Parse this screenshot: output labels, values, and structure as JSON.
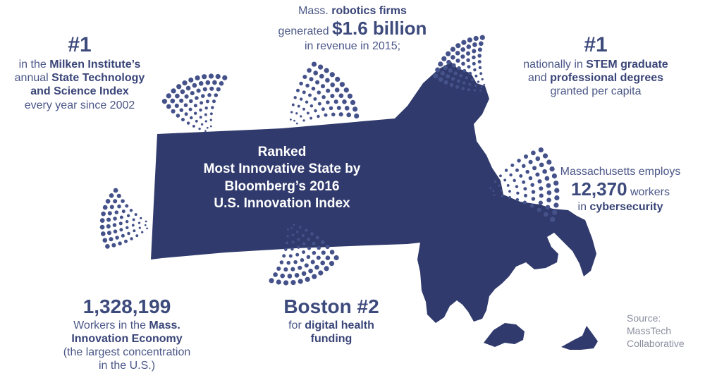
{
  "colors": {
    "navy": "#303a6c",
    "dots": "#45528a",
    "text": "#3d4a7c",
    "source": "#8a8f9e"
  },
  "map_label": "massachusetts-map",
  "center": {
    "line1": "Ranked",
    "line2": "Most Innovative State by",
    "line3": "Bloomberg’s 2016",
    "line4": "U.S. Innovation Index"
  },
  "milken": {
    "rank": "#1",
    "line1_pre": "in the ",
    "line1_bold": "Milken Institute’s",
    "line2_pre": "annual ",
    "line2_bold": "State Technology",
    "line3_bold": "and Science Index",
    "line4": "every year since 2002"
  },
  "robotics": {
    "line1_pre": "Mass. ",
    "line1_bold": "robotics firms",
    "line2_pre": "generated ",
    "line2_big": "$1.6 billion",
    "line3": "in revenue in 2015;"
  },
  "stem": {
    "rank": "#1",
    "line1_pre": "nationally in ",
    "line1_bold": "STEM graduate",
    "line2_pre": "and ",
    "line2_bold": "professional degrees",
    "line3": "granted per capita"
  },
  "cyber": {
    "line1": "Massachusetts employs",
    "number": "12,370",
    "line2_post": " workers",
    "line3_pre": "in ",
    "line3_bold": "cybersecurity"
  },
  "workers": {
    "number": "1,328,199",
    "line1_pre": "Workers in the ",
    "line1_bold": "Mass.",
    "line2_bold": "Innovation Economy",
    "line3": "(the largest concentration",
    "line4": "in the U.S.)"
  },
  "boston": {
    "headline": "Boston #2",
    "line1_pre": "for ",
    "line1_bold": "digital health",
    "line2_bold": "funding"
  },
  "source": {
    "line1": "Source:",
    "line2": "MassTech",
    "line3": "Collaborative"
  }
}
